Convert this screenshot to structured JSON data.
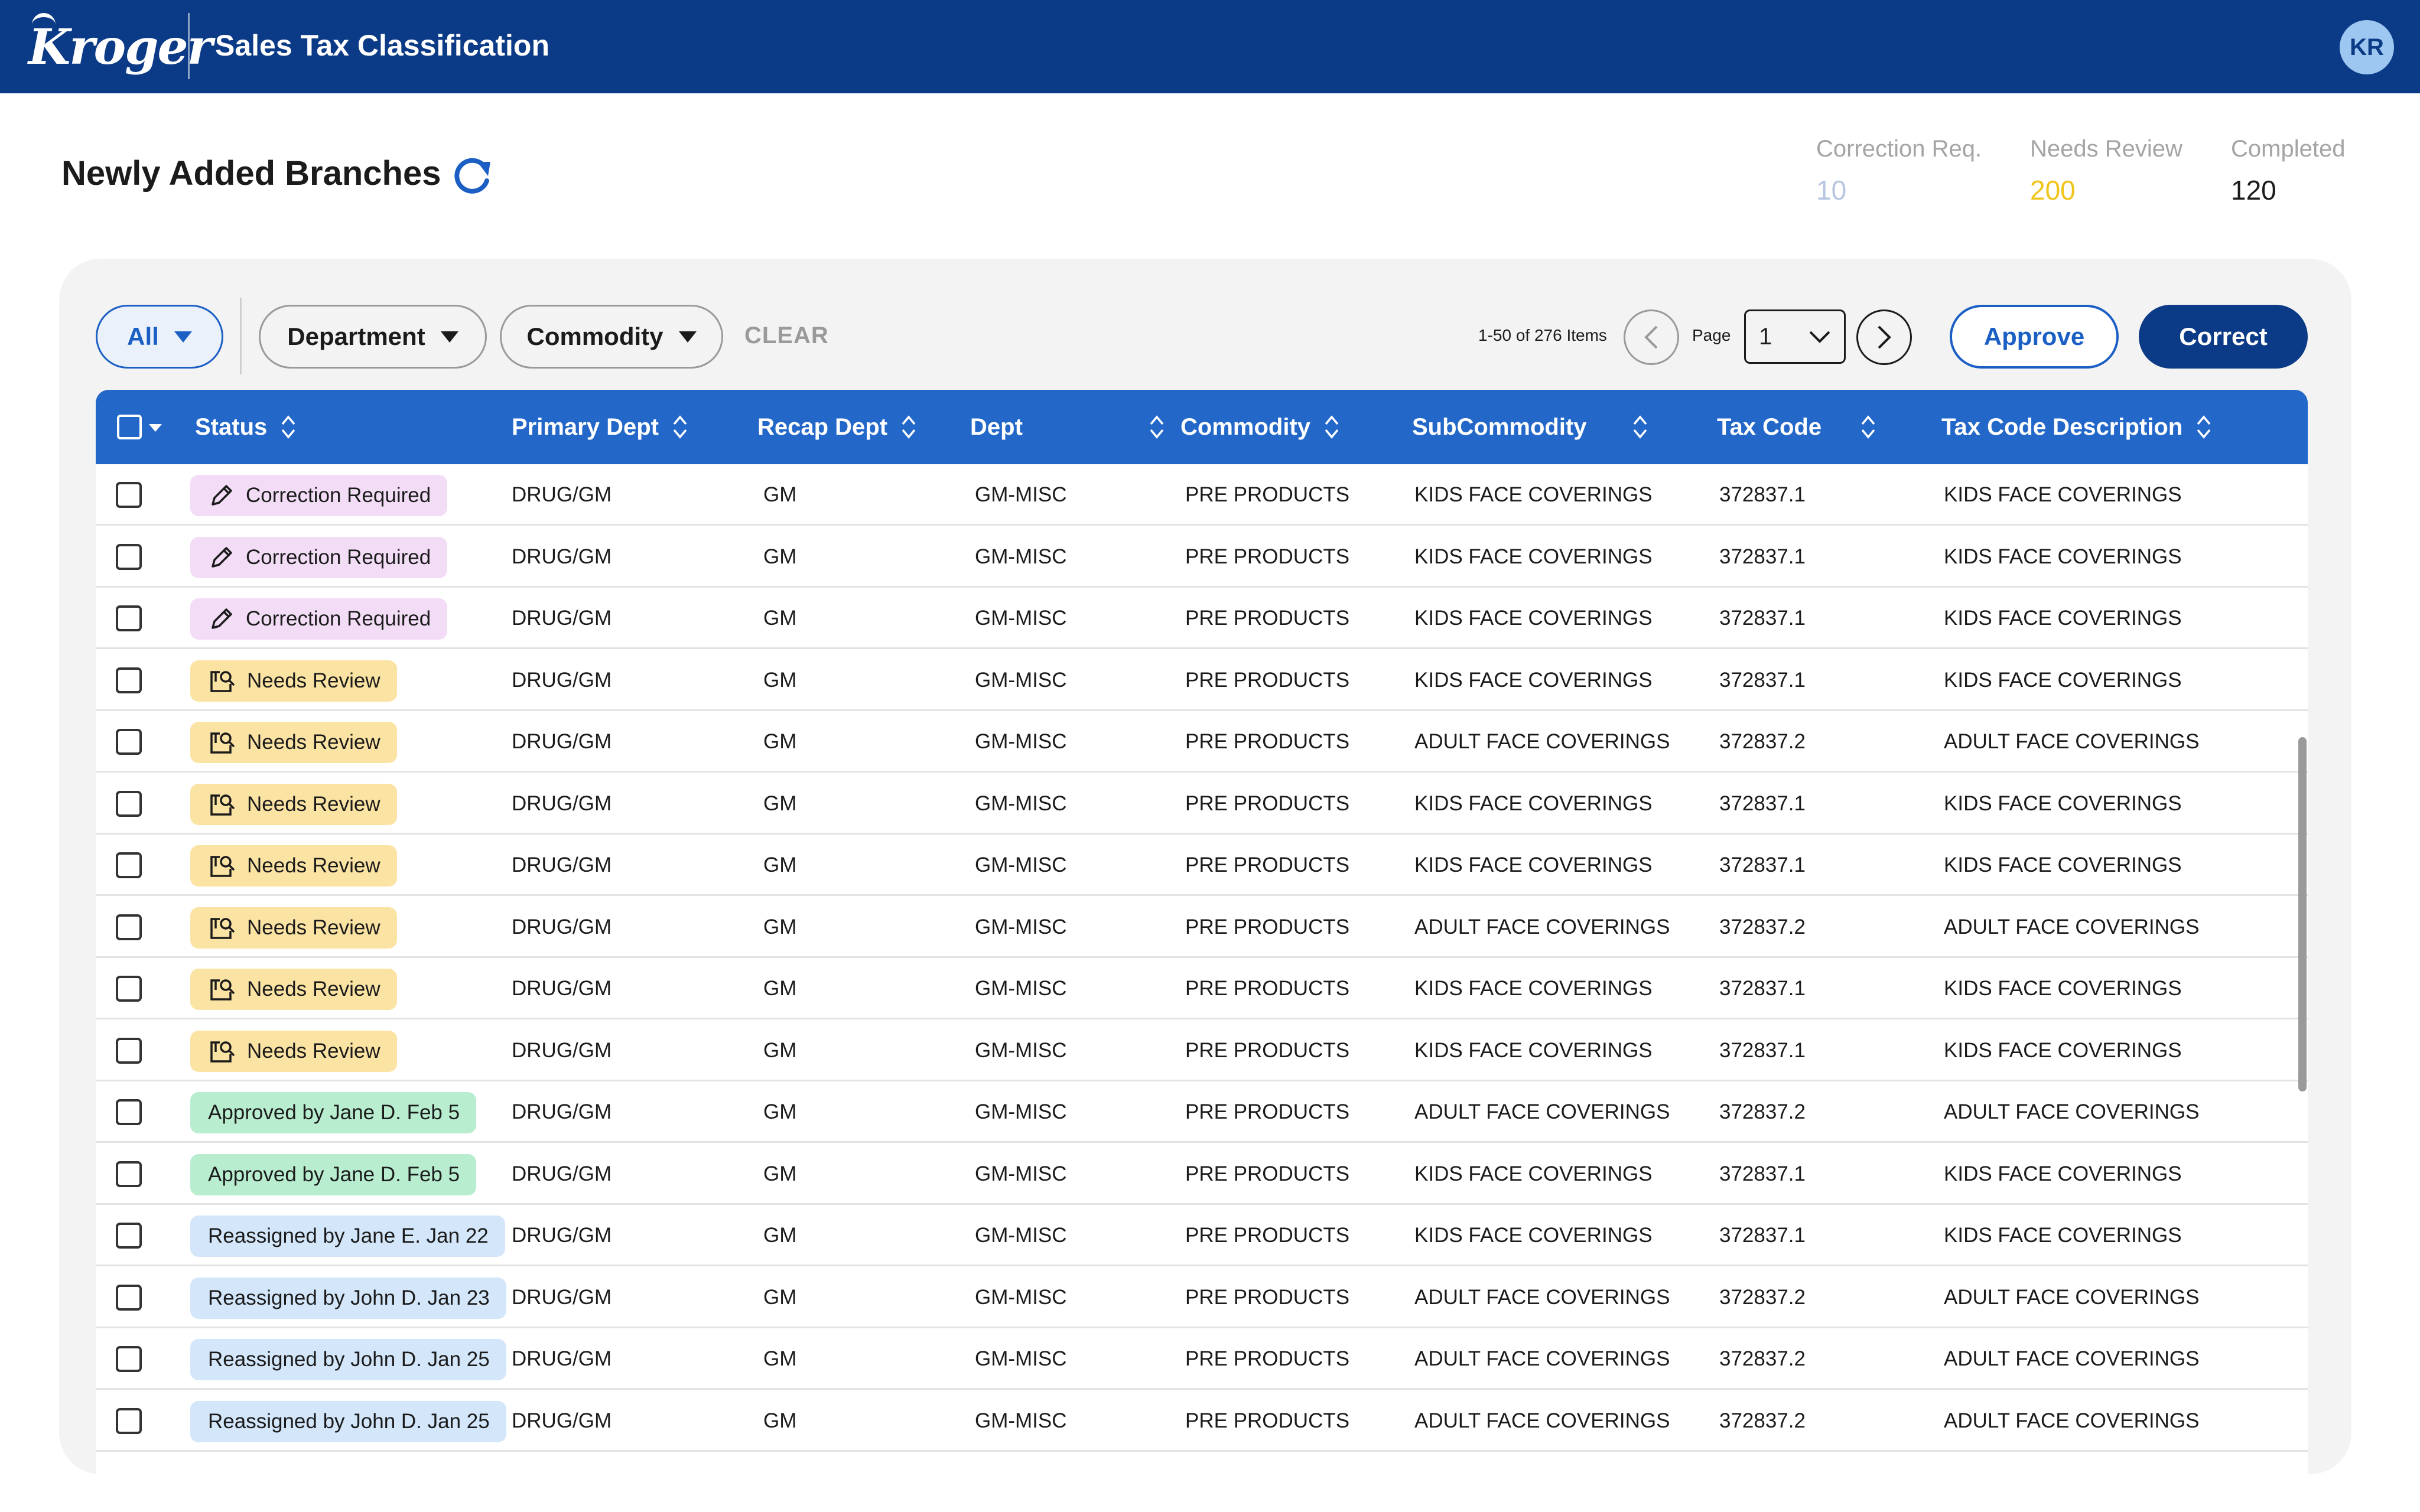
{
  "header": {
    "brand": "Kroger",
    "app_title": "Sales Tax Classification",
    "avatar_initials": "KR"
  },
  "page": {
    "title": "Newly Added Branches"
  },
  "stats": [
    {
      "label": "Correction Req.",
      "value": "10",
      "color": "#b6c6e0"
    },
    {
      "label": "Needs Review",
      "value": "200",
      "color": "#f0c419"
    },
    {
      "label": "Completed",
      "value": "120",
      "color": "#1b1b1b"
    }
  ],
  "filters": {
    "all_label": "All",
    "department_label": "Department",
    "commodity_label": "Commodity",
    "clear_label": "CLEAR"
  },
  "pagination": {
    "items_text": "1-50 of 276 Items",
    "page_label": "Page",
    "current_page": "1"
  },
  "actions": {
    "approve_label": "Approve",
    "correct_label": "Correct"
  },
  "table": {
    "columns": [
      "Status",
      "Primary Dept",
      "Recap Dept",
      "Dept",
      "Commodity",
      "SubCommodity",
      "Tax Code",
      "Tax Code Description"
    ],
    "rows": [
      {
        "status": "Correction Required",
        "status_type": "correction",
        "primary_dept": "DRUG/GM",
        "recap_dept": "GM",
        "dept": "GM-MISC",
        "commodity": "PRE PRODUCTS",
        "subcommodity": "KIDS FACE COVERINGS",
        "tax_code": "372837.1",
        "tax_desc": "KIDS FACE COVERINGS"
      },
      {
        "status": "Correction Required",
        "status_type": "correction",
        "primary_dept": "DRUG/GM",
        "recap_dept": "GM",
        "dept": "GM-MISC",
        "commodity": "PRE PRODUCTS",
        "subcommodity": "KIDS FACE COVERINGS",
        "tax_code": "372837.1",
        "tax_desc": "KIDS FACE COVERINGS"
      },
      {
        "status": "Correction Required",
        "status_type": "correction",
        "primary_dept": "DRUG/GM",
        "recap_dept": "GM",
        "dept": "GM-MISC",
        "commodity": "PRE PRODUCTS",
        "subcommodity": "KIDS FACE COVERINGS",
        "tax_code": "372837.1",
        "tax_desc": "KIDS FACE COVERINGS"
      },
      {
        "status": "Needs Review",
        "status_type": "review",
        "primary_dept": "DRUG/GM",
        "recap_dept": "GM",
        "dept": "GM-MISC",
        "commodity": "PRE PRODUCTS",
        "subcommodity": "KIDS FACE COVERINGS",
        "tax_code": "372837.1",
        "tax_desc": "KIDS FACE COVERINGS"
      },
      {
        "status": "Needs Review",
        "status_type": "review",
        "primary_dept": "DRUG/GM",
        "recap_dept": "GM",
        "dept": "GM-MISC",
        "commodity": "PRE PRODUCTS",
        "subcommodity": "ADULT FACE COVERINGS",
        "tax_code": "372837.2",
        "tax_desc": "ADULT FACE COVERINGS"
      },
      {
        "status": "Needs Review",
        "status_type": "review",
        "primary_dept": "DRUG/GM",
        "recap_dept": "GM",
        "dept": "GM-MISC",
        "commodity": "PRE PRODUCTS",
        "subcommodity": "KIDS FACE COVERINGS",
        "tax_code": "372837.1",
        "tax_desc": "KIDS FACE COVERINGS"
      },
      {
        "status": "Needs Review",
        "status_type": "review",
        "primary_dept": "DRUG/GM",
        "recap_dept": "GM",
        "dept": "GM-MISC",
        "commodity": "PRE PRODUCTS",
        "subcommodity": "KIDS FACE COVERINGS",
        "tax_code": "372837.1",
        "tax_desc": "KIDS FACE COVERINGS"
      },
      {
        "status": "Needs Review",
        "status_type": "review",
        "primary_dept": "DRUG/GM",
        "recap_dept": "GM",
        "dept": "GM-MISC",
        "commodity": "PRE PRODUCTS",
        "subcommodity": "ADULT FACE COVERINGS",
        "tax_code": "372837.2",
        "tax_desc": "ADULT FACE COVERINGS"
      },
      {
        "status": "Needs Review",
        "status_type": "review",
        "primary_dept": "DRUG/GM",
        "recap_dept": "GM",
        "dept": "GM-MISC",
        "commodity": "PRE PRODUCTS",
        "subcommodity": "KIDS FACE COVERINGS",
        "tax_code": "372837.1",
        "tax_desc": "KIDS FACE COVERINGS"
      },
      {
        "status": "Needs Review",
        "status_type": "review",
        "primary_dept": "DRUG/GM",
        "recap_dept": "GM",
        "dept": "GM-MISC",
        "commodity": "PRE PRODUCTS",
        "subcommodity": "KIDS FACE COVERINGS",
        "tax_code": "372837.1",
        "tax_desc": "KIDS FACE COVERINGS"
      },
      {
        "status": "Approved by Jane D. Feb 5",
        "status_type": "approved",
        "primary_dept": "DRUG/GM",
        "recap_dept": "GM",
        "dept": "GM-MISC",
        "commodity": "PRE PRODUCTS",
        "subcommodity": "ADULT FACE COVERINGS",
        "tax_code": "372837.2",
        "tax_desc": "ADULT FACE COVERINGS"
      },
      {
        "status": "Approved by Jane D. Feb 5",
        "status_type": "approved",
        "primary_dept": "DRUG/GM",
        "recap_dept": "GM",
        "dept": "GM-MISC",
        "commodity": "PRE PRODUCTS",
        "subcommodity": "KIDS FACE COVERINGS",
        "tax_code": "372837.1",
        "tax_desc": "KIDS FACE COVERINGS"
      },
      {
        "status": "Reassigned by Jane E. Jan 22",
        "status_type": "reassigned",
        "primary_dept": "DRUG/GM",
        "recap_dept": "GM",
        "dept": "GM-MISC",
        "commodity": "PRE PRODUCTS",
        "subcommodity": "KIDS FACE COVERINGS",
        "tax_code": "372837.1",
        "tax_desc": "KIDS FACE COVERINGS"
      },
      {
        "status": "Reassigned by John D. Jan 23",
        "status_type": "reassigned",
        "primary_dept": "DRUG/GM",
        "recap_dept": "GM",
        "dept": "GM-MISC",
        "commodity": "PRE PRODUCTS",
        "subcommodity": "ADULT FACE COVERINGS",
        "tax_code": "372837.2",
        "tax_desc": "ADULT FACE COVERINGS"
      },
      {
        "status": "Reassigned by John D. Jan 25",
        "status_type": "reassigned",
        "primary_dept": "DRUG/GM",
        "recap_dept": "GM",
        "dept": "GM-MISC",
        "commodity": "PRE PRODUCTS",
        "subcommodity": "ADULT FACE COVERINGS",
        "tax_code": "372837.2",
        "tax_desc": "ADULT FACE COVERINGS"
      },
      {
        "status": "Reassigned by John D. Jan 25",
        "status_type": "reassigned",
        "primary_dept": "DRUG/GM",
        "recap_dept": "GM",
        "dept": "GM-MISC",
        "commodity": "PRE PRODUCTS",
        "subcommodity": "ADULT FACE COVERINGS",
        "tax_code": "372837.2",
        "tax_desc": "ADULT FACE COVERINGS"
      }
    ]
  },
  "colors": {
    "header_bg": "#0b3a86",
    "table_header_bg": "#2368c8",
    "accent": "#1b5fc4",
    "correction_badge": "#f2dcf6",
    "review_badge": "#fbe3a3",
    "approved_badge": "#b8edd0",
    "reassigned_badge": "#d3e6fa"
  }
}
